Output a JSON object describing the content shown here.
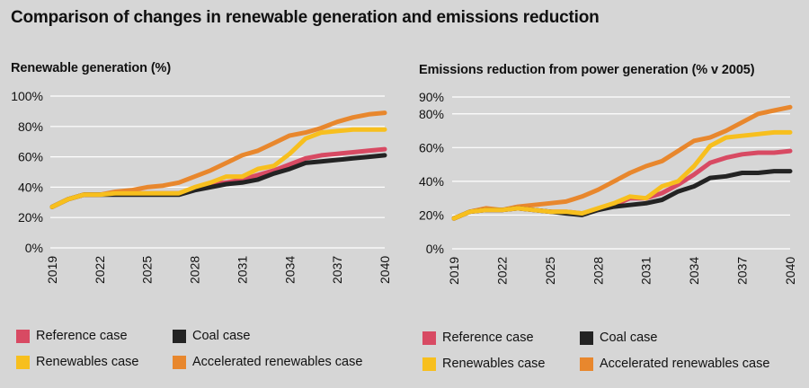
{
  "title": "Comparison of changes in renewable generation and emissions reduction",
  "colors": {
    "reference": "#d84a63",
    "coal": "#232323",
    "renewables": "#f7bf1e",
    "accelerated": "#e8872d",
    "grid": "#ffffff",
    "background": "#d6d6d6"
  },
  "legend": [
    {
      "key": "reference",
      "label": "Reference case"
    },
    {
      "key": "coal",
      "label": "Coal case"
    },
    {
      "key": "renewables",
      "label": "Renewables case"
    },
    {
      "key": "accelerated",
      "label": "Accelerated renewables case"
    }
  ],
  "chart_data": [
    {
      "type": "line",
      "title": "Renewable generation (%)",
      "x": [
        2019,
        2020,
        2021,
        2022,
        2023,
        2024,
        2025,
        2026,
        2027,
        2028,
        2029,
        2030,
        2031,
        2032,
        2033,
        2034,
        2035,
        2036,
        2037,
        2038,
        2039,
        2040
      ],
      "xticks": [
        "2019",
        "2022",
        "2025",
        "2028",
        "2031",
        "2034",
        "2037",
        "2040"
      ],
      "yticks": [
        "0%",
        "20%",
        "40%",
        "60%",
        "80%",
        "100%"
      ],
      "ylim": [
        0,
        100
      ],
      "series": [
        {
          "key": "accelerated",
          "name": "Accelerated renewables case",
          "values": [
            27,
            32,
            35,
            35,
            37,
            38,
            40,
            41,
            43,
            47,
            51,
            56,
            61,
            64,
            69,
            74,
            76,
            79,
            83,
            86,
            88,
            89
          ]
        },
        {
          "key": "reference",
          "name": "Reference case",
          "values": [
            27,
            32,
            35,
            35,
            36,
            36,
            36,
            36,
            36,
            39,
            42,
            43,
            45,
            48,
            51,
            55,
            59,
            61,
            62,
            63,
            64,
            65
          ]
        },
        {
          "key": "coal",
          "name": "Coal case",
          "values": [
            27,
            32,
            35,
            35,
            35,
            35,
            35,
            35,
            35,
            38,
            40,
            42,
            43,
            45,
            49,
            52,
            56,
            57,
            58,
            59,
            60,
            61
          ]
        },
        {
          "key": "renewables",
          "name": "Renewables case",
          "values": [
            27,
            32,
            35,
            35,
            36,
            36,
            36,
            36,
            36,
            40,
            43,
            47,
            47,
            52,
            54,
            62,
            72,
            76,
            77,
            78,
            78,
            78
          ]
        }
      ]
    },
    {
      "type": "line",
      "title": "Emissions reduction from power generation (% v 2005)",
      "x": [
        2019,
        2020,
        2021,
        2022,
        2023,
        2024,
        2025,
        2026,
        2027,
        2028,
        2029,
        2030,
        2031,
        2032,
        2033,
        2034,
        2035,
        2036,
        2037,
        2038,
        2039,
        2040
      ],
      "xticks": [
        "2019",
        "2022",
        "2025",
        "2028",
        "2031",
        "2034",
        "2037",
        "2040"
      ],
      "yticks": [
        "0%",
        "20%",
        "40%",
        "60%",
        "80%",
        "90%"
      ],
      "ylim": [
        0,
        90
      ],
      "series": [
        {
          "key": "accelerated",
          "name": "Accelerated renewables case",
          "values": [
            18,
            22,
            24,
            23,
            25,
            26,
            27,
            28,
            31,
            35,
            40,
            45,
            49,
            52,
            58,
            64,
            66,
            70,
            75,
            80,
            82,
            84
          ]
        },
        {
          "key": "reference",
          "name": "Reference case",
          "values": [
            18,
            22,
            23,
            23,
            24,
            23,
            22,
            22,
            21,
            23,
            26,
            30,
            30,
            33,
            38,
            44,
            51,
            54,
            56,
            57,
            57,
            58
          ]
        },
        {
          "key": "coal",
          "name": "Coal case",
          "values": [
            18,
            22,
            23,
            23,
            24,
            23,
            22,
            21,
            20,
            23,
            25,
            26,
            27,
            29,
            34,
            37,
            42,
            43,
            45,
            45,
            46,
            46
          ]
        },
        {
          "key": "renewables",
          "name": "Renewables case",
          "values": [
            18,
            22,
            23,
            23,
            24,
            23,
            22,
            22,
            21,
            24,
            27,
            31,
            30,
            37,
            40,
            49,
            61,
            66,
            67,
            68,
            69,
            69
          ]
        }
      ]
    }
  ]
}
